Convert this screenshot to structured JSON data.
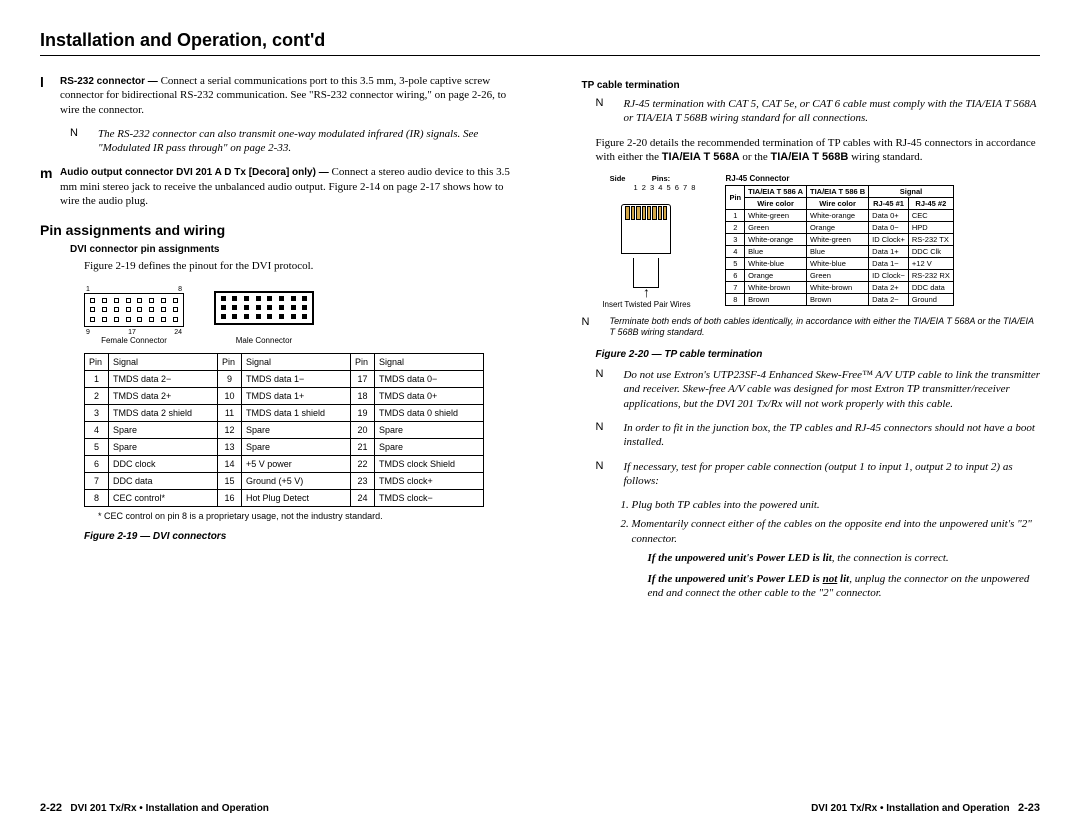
{
  "page_title": "Installation and Operation, cont'd",
  "left": {
    "entry_l_label": "l",
    "entry_l_bold": "RS-232 connector —",
    "entry_l_text": " Connect a serial communications port to this 3.5 mm, 3-pole captive screw connector for bidirectional RS-232 communication. See \"RS-232 connector wiring,\" on page 2-26, to wire the connector.",
    "note_l": "The RS-232 connector can also transmit one-way modulated infrared (IR) signals. See \"Modulated IR pass through\" on page 2-33.",
    "entry_m_label": "m",
    "entry_m_bold": "Audio output connector DVI 201 A D Tx [Decora] only) —",
    "entry_m_text": " Connect a stereo audio device to this 3.5 mm mini stereo jack to receive the unbalanced audio output. Figure 2-14 on page 2-17 shows how to wire the audio plug.",
    "section_pins": "Pin assignments and wiring",
    "sub_dvi": "DVI connector pin assignments",
    "dvi_intro": "Figure 2-19 defines the pinout for the DVI protocol.",
    "conn_female": "Female Connector",
    "conn_male": "Male Connector",
    "dvi_headers": [
      "Pin",
      "Signal",
      "Pin",
      "Signal",
      "Pin",
      "Signal"
    ],
    "dvi_rows": [
      [
        "1",
        "TMDS data 2−",
        "9",
        "TMDS data 1−",
        "17",
        "TMDS data 0−"
      ],
      [
        "2",
        "TMDS data 2+",
        "10",
        "TMDS data 1+",
        "18",
        "TMDS data 0+"
      ],
      [
        "3",
        "TMDS data 2 shield",
        "11",
        "TMDS data 1 shield",
        "19",
        "TMDS data 0 shield"
      ],
      [
        "4",
        "Spare",
        "12",
        "Spare",
        "20",
        "Spare"
      ],
      [
        "5",
        "Spare",
        "13",
        "Spare",
        "21",
        "Spare"
      ],
      [
        "6",
        "DDC clock",
        "14",
        "+5 V power",
        "22",
        "TMDS clock Shield"
      ],
      [
        "7",
        "DDC data",
        "15",
        "Ground (+5 V)",
        "23",
        "TMDS clock+"
      ],
      [
        "8",
        "CEC control*",
        "16",
        "Hot Plug Detect",
        "24",
        "TMDS clock−"
      ]
    ],
    "footnote": "* CEC control on pin 8 is a proprietary usage, not the industry standard.",
    "fig_19": "Figure 2-19 — DVI connectors",
    "num_1": "1",
    "num_8": "8",
    "num_9": "9",
    "num_17": "17",
    "num_24": "24"
  },
  "right": {
    "sub_tp": "TP cable termination",
    "note_rj45": "RJ-45 termination with CAT 5, CAT 5e, or CAT 6 cable must comply with the TIA/EIA T 568A or TIA/EIA T 568B wiring standard for all connections.",
    "tp_intro_1": "Figure 2-20 details the recommended termination of TP cables with RJ-45 connectors in accordance with either the ",
    "tp_intro_bold1": "TIA/EIA T 568A",
    "tp_intro_mid": " or the ",
    "tp_intro_bold2": "TIA/EIA T 568B",
    "tp_intro_2": " wiring standard.",
    "side_label": "Side",
    "pins_label": "Pins:",
    "pins_nums": "1 2 3 4 5 6 7 8",
    "rj45_conn": "RJ-45 Connector",
    "insert_label": "Insert Twisted Pair Wires",
    "wire_h1": "TIA/EIA T 586 A",
    "wire_h2": "TIA/EIA T 586 B",
    "wire_h3": "Signal",
    "wire_sub": [
      "Pin",
      "Wire color",
      "Wire color",
      "RJ-45 #1",
      "RJ-45 #2"
    ],
    "wire_rows": [
      [
        "1",
        "White-green",
        "White-orange",
        "Data 0+",
        "CEC"
      ],
      [
        "2",
        "Green",
        "Orange",
        "Data 0−",
        "HPD"
      ],
      [
        "3",
        "White-orange",
        "White-green",
        "ID Clock+",
        "RS-232 TX"
      ],
      [
        "4",
        "Blue",
        "Blue",
        "Data 1+",
        "DDC Clk"
      ],
      [
        "5",
        "White-blue",
        "White-blue",
        "Data 1−",
        "+12 V"
      ],
      [
        "6",
        "Orange",
        "Green",
        "ID Clock−",
        "RS-232 RX"
      ],
      [
        "7",
        "White-brown",
        "White-brown",
        "Data 2+",
        "DDC data"
      ],
      [
        "8",
        "Brown",
        "Brown",
        "Data 2−",
        "Ground"
      ]
    ],
    "note_term": "Terminate both ends of both cables identically, in accordance with either the TIA/EIA T 568A or the TIA/EIA T 568B wiring standard.",
    "fig_20": "Figure 2-20 — TP cable termination",
    "note_skew": "Do not use Extron's UTP23SF-4 Enhanced Skew-Free™ A/V UTP cable to link the transmitter and receiver. Skew-free A/V cable was designed for most Extron TP transmitter/receiver applications, but the DVI 201 Tx/Rx will not work properly with this cable.",
    "note_boot": "In order to fit in the junction box, the TP cables and RJ-45 connectors should not have a boot installed.",
    "note_test": "If necessary, test for proper cable connection (output 1 to input 1, output 2 to input 2) as follows:",
    "steps": [
      "Plug both TP cables into the powered unit.",
      "Momentarily connect either of the cables on the opposite end into the unpowered unit's \"2\" connector."
    ],
    "step_after_1": "If the unpowered unit's Power LED is lit",
    "step_after_1b": ", the connection is correct.",
    "step_after_2a": "If the unpowered unit's Power LED is ",
    "step_after_2u": "not",
    "step_after_2b": " lit",
    "step_after_2c": ", unplug the connector on the unpowered end and connect the other cable to the \"2\" connector."
  },
  "footer": {
    "left_pg": "2-22",
    "left_txt": "DVI 201 Tx/Rx • Installation and Operation",
    "right_txt": "DVI 201 Tx/Rx • Installation and Operation",
    "right_pg": "2-23"
  },
  "note_label": "N"
}
